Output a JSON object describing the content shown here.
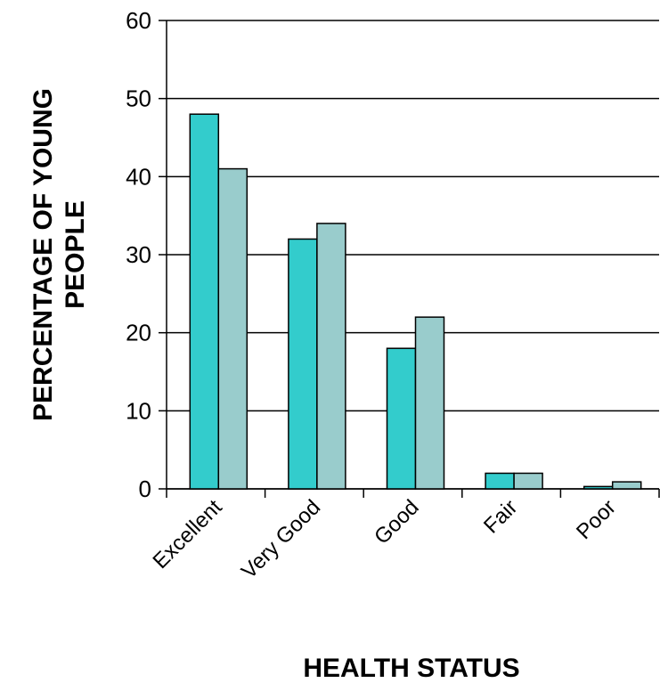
{
  "chart_data": {
    "type": "bar",
    "y_label": [
      "PERCENTAGE OF YOUNG",
      "PEOPLE"
    ],
    "x_label": "HEALTH STATUS",
    "categories": [
      "Excellent",
      "Very Good",
      "Good",
      "Fair",
      "Poor"
    ],
    "series": [
      {
        "color": "#33cccc",
        "values": [
          48,
          32,
          18,
          2,
          0.3
        ]
      },
      {
        "color": "#99cccc",
        "values": [
          41,
          34,
          22,
          2,
          0.9
        ]
      }
    ],
    "ylim": [
      0,
      60
    ],
    "yticks": [
      0,
      10,
      20,
      30,
      40,
      50,
      60
    ],
    "grid": true
  }
}
